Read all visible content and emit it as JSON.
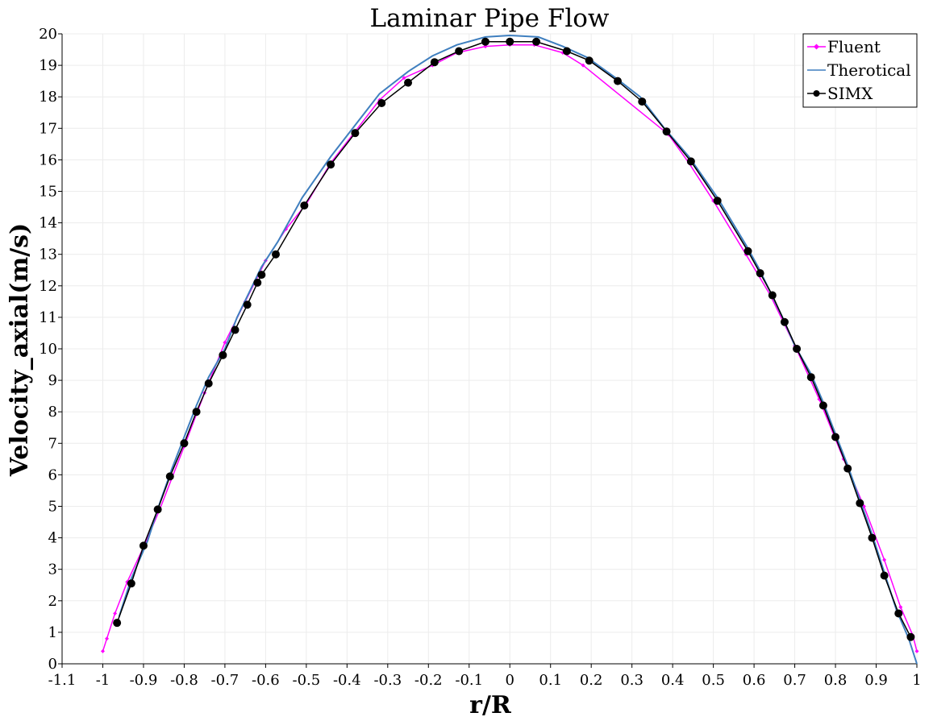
{
  "chart_data": {
    "type": "line",
    "title": "Laminar Pipe Flow",
    "xlabel": "r/R",
    "ylabel": "Velocity_axial(m/s)",
    "xlim": [
      -1.1,
      1
    ],
    "ylim": [
      0,
      20
    ],
    "x_ticks": [
      "-1.1",
      "-1",
      "-0.9",
      "-0.8",
      "-0.7",
      "-0.6",
      "-0.5",
      "-0.4",
      "-0.3",
      "-0.2",
      "-0.1",
      "0",
      "0.1",
      "0.2",
      "0.3",
      "0.4",
      "0.5",
      "0.6",
      "0.7",
      "0.8",
      "0.9",
      "1"
    ],
    "y_ticks": [
      "0",
      "1",
      "2",
      "3",
      "4",
      "5",
      "6",
      "7",
      "8",
      "9",
      "10",
      "11",
      "12",
      "13",
      "14",
      "15",
      "16",
      "17",
      "18",
      "19",
      "20"
    ],
    "grid": true,
    "legend_position": "top-right",
    "series": [
      {
        "name": "Fluent",
        "color": "#ff00ff",
        "marker": "small-diamond",
        "x": [
          -1.0,
          -0.99,
          -0.97,
          -0.94,
          -0.9,
          -0.86,
          -0.8,
          -0.75,
          -0.7,
          -0.65,
          -0.6,
          -0.55,
          -0.5,
          -0.44,
          -0.38,
          -0.32,
          -0.26,
          -0.19,
          -0.13,
          -0.06,
          0.0,
          0.06,
          0.13,
          0.18,
          0.39,
          0.44,
          0.5,
          0.58,
          0.64,
          0.7,
          0.76,
          0.82,
          0.87,
          0.92,
          0.96,
          0.99,
          1.0
        ],
        "y": [
          0.4,
          0.8,
          1.6,
          2.6,
          3.7,
          4.9,
          6.9,
          8.6,
          10.2,
          11.5,
          12.8,
          13.8,
          14.6,
          15.9,
          16.9,
          17.9,
          18.6,
          19.0,
          19.4,
          19.6,
          19.65,
          19.65,
          19.4,
          19.0,
          16.8,
          15.9,
          14.7,
          13.0,
          11.7,
          10.1,
          8.4,
          6.5,
          5.0,
          3.3,
          1.8,
          0.9,
          0.4
        ]
      },
      {
        "name": "Therotical",
        "color": "#3f7fbf",
        "marker": "none",
        "x": [
          -0.96,
          -0.93,
          -0.89,
          -0.86,
          -0.83,
          -0.8,
          -0.77,
          -0.74,
          -0.7,
          -0.67,
          -0.64,
          -0.61,
          -0.57,
          -0.51,
          -0.44,
          -0.38,
          -0.32,
          -0.25,
          -0.19,
          -0.13,
          -0.06,
          0.0,
          0.07,
          0.13,
          0.19,
          0.26,
          0.32,
          0.38,
          0.44,
          0.51,
          0.58,
          0.61,
          0.64,
          0.67,
          0.7,
          0.74,
          0.77,
          0.8,
          0.83,
          0.86,
          0.89,
          0.92,
          0.95,
          0.98,
          1.0
        ],
        "y": [
          1.5,
          2.7,
          3.9,
          5.1,
          6.2,
          7.2,
          8.2,
          9.1,
          10.0,
          11.0,
          11.8,
          12.6,
          13.4,
          14.8,
          16.1,
          17.1,
          18.1,
          18.8,
          19.3,
          19.65,
          19.9,
          19.95,
          19.9,
          19.6,
          19.25,
          18.6,
          18.0,
          17.0,
          16.1,
          14.8,
          13.3,
          12.6,
          11.8,
          11.0,
          10.1,
          9.2,
          8.3,
          7.3,
          6.3,
          5.2,
          4.1,
          2.9,
          1.7,
          0.8,
          0.0
        ]
      },
      {
        "name": "SIMX",
        "color": "#000000",
        "marker": "circle",
        "x": [
          -0.965,
          -0.93,
          -0.9,
          -0.865,
          -0.835,
          -0.8,
          -0.77,
          -0.74,
          -0.705,
          -0.675,
          -0.645,
          -0.62,
          -0.61,
          -0.575,
          -0.505,
          -0.44,
          -0.38,
          -0.315,
          -0.25,
          -0.185,
          -0.125,
          -0.06,
          0.0,
          0.065,
          0.14,
          0.195,
          0.265,
          0.325,
          0.385,
          0.445,
          0.51,
          0.585,
          0.615,
          0.645,
          0.675,
          0.705,
          0.74,
          0.77,
          0.8,
          0.83,
          0.86,
          0.89,
          0.92,
          0.955,
          0.985
        ],
        "y": [
          1.3,
          2.55,
          3.75,
          4.9,
          5.95,
          7.0,
          8.0,
          8.9,
          9.8,
          10.6,
          11.4,
          12.1,
          12.35,
          13.0,
          14.55,
          15.85,
          16.85,
          17.8,
          18.45,
          19.1,
          19.45,
          19.75,
          19.75,
          19.75,
          19.45,
          19.15,
          18.5,
          17.85,
          16.9,
          15.95,
          14.7,
          13.1,
          12.4,
          11.7,
          10.85,
          10.0,
          9.1,
          8.2,
          7.2,
          6.2,
          5.1,
          4.0,
          2.8,
          1.6,
          0.85
        ]
      }
    ]
  }
}
